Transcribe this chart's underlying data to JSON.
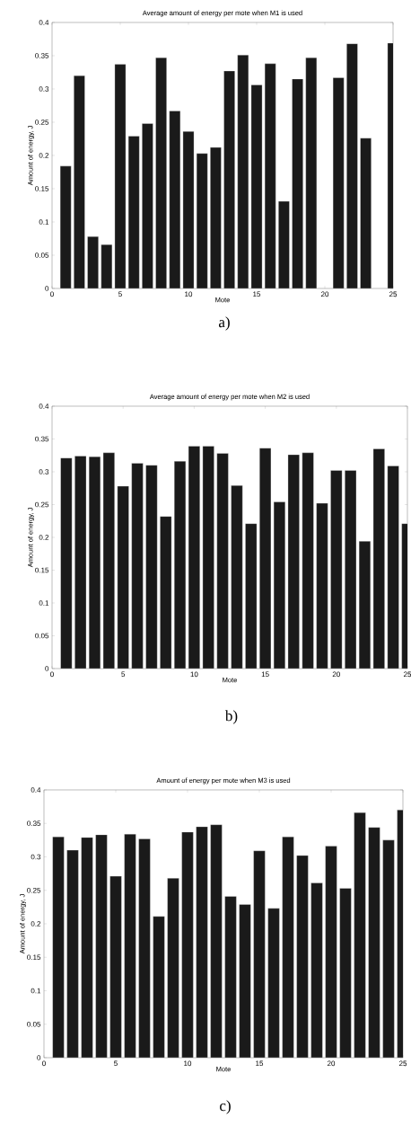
{
  "chart_data": [
    {
      "type": "bar",
      "title": "Average amount of energy per mote when M1 is used",
      "xlabel": "Mote",
      "ylabel": "Amount of energy, J",
      "annotations": [
        "a)"
      ],
      "color": "#1a1a1a",
      "x": [
        1,
        2,
        3,
        4,
        5,
        6,
        7,
        8,
        9,
        10,
        11,
        12,
        13,
        14,
        15,
        16,
        17,
        18,
        19,
        20,
        21,
        22,
        23,
        24,
        25
      ],
      "values": [
        0.184,
        0.32,
        0.078,
        0.066,
        0.337,
        0.229,
        0.248,
        0.347,
        0.267,
        0.236,
        0.203,
        0.212,
        0.327,
        0.351,
        0.306,
        0.338,
        0.131,
        0.315,
        0.347,
        null,
        0.317,
        0.368,
        0.226,
        null,
        0.369
      ],
      "xlim": [
        0,
        25
      ],
      "ylim": [
        0,
        0.4
      ],
      "xticks": [
        0,
        5,
        10,
        15,
        20,
        25
      ],
      "yticks": [
        0,
        0.05,
        0.1,
        0.15,
        0.2,
        0.25,
        0.3,
        0.35,
        0.4
      ]
    },
    {
      "type": "bar",
      "title": "Average amount of energy per mote when M2 is used",
      "xlabel": "Mote",
      "ylabel": "Amount of energy, J",
      "annotations": [
        "b)"
      ],
      "color": "#1a1a1a",
      "x": [
        1,
        2,
        3,
        4,
        5,
        6,
        7,
        8,
        9,
        10,
        11,
        12,
        13,
        14,
        15,
        16,
        17,
        18,
        19,
        20,
        21,
        22,
        23,
        24,
        25
      ],
      "values": [
        0.321,
        0.324,
        0.323,
        0.329,
        0.278,
        0.313,
        0.31,
        0.232,
        0.316,
        0.339,
        0.339,
        0.328,
        0.279,
        0.221,
        0.336,
        0.254,
        0.326,
        0.329,
        0.252,
        0.302,
        0.302,
        0.194,
        0.335,
        0.309,
        0.221
      ],
      "xlim": [
        0,
        25
      ],
      "ylim": [
        0,
        0.4
      ],
      "xticks": [
        0,
        5,
        10,
        15,
        20,
        25
      ],
      "yticks": [
        0,
        0.05,
        0.1,
        0.15,
        0.2,
        0.25,
        0.3,
        0.35,
        0.4
      ]
    },
    {
      "type": "bar",
      "title": "Amount of energy per mote when M3 is used",
      "xlabel": "Mote",
      "ylabel": "Amount of energy, J",
      "annotations": [
        "c)"
      ],
      "color": "#1a1a1a",
      "x": [
        1,
        2,
        3,
        4,
        5,
        6,
        7,
        8,
        9,
        10,
        11,
        12,
        13,
        14,
        15,
        16,
        17,
        18,
        19,
        20,
        21,
        22,
        23,
        24,
        25
      ],
      "values": [
        0.33,
        0.31,
        0.329,
        0.333,
        0.271,
        0.334,
        0.327,
        0.211,
        0.268,
        0.337,
        0.345,
        0.348,
        0.241,
        0.229,
        0.309,
        0.223,
        0.33,
        0.302,
        0.261,
        0.316,
        0.253,
        0.366,
        0.344,
        0.325,
        0.37
      ],
      "xlim": [
        0,
        25
      ],
      "ylim": [
        0,
        0.4
      ],
      "xticks": [
        0,
        5,
        10,
        15,
        20,
        25
      ],
      "yticks": [
        0,
        0.05,
        0.1,
        0.15,
        0.2,
        0.25,
        0.3,
        0.35,
        0.4
      ]
    }
  ]
}
